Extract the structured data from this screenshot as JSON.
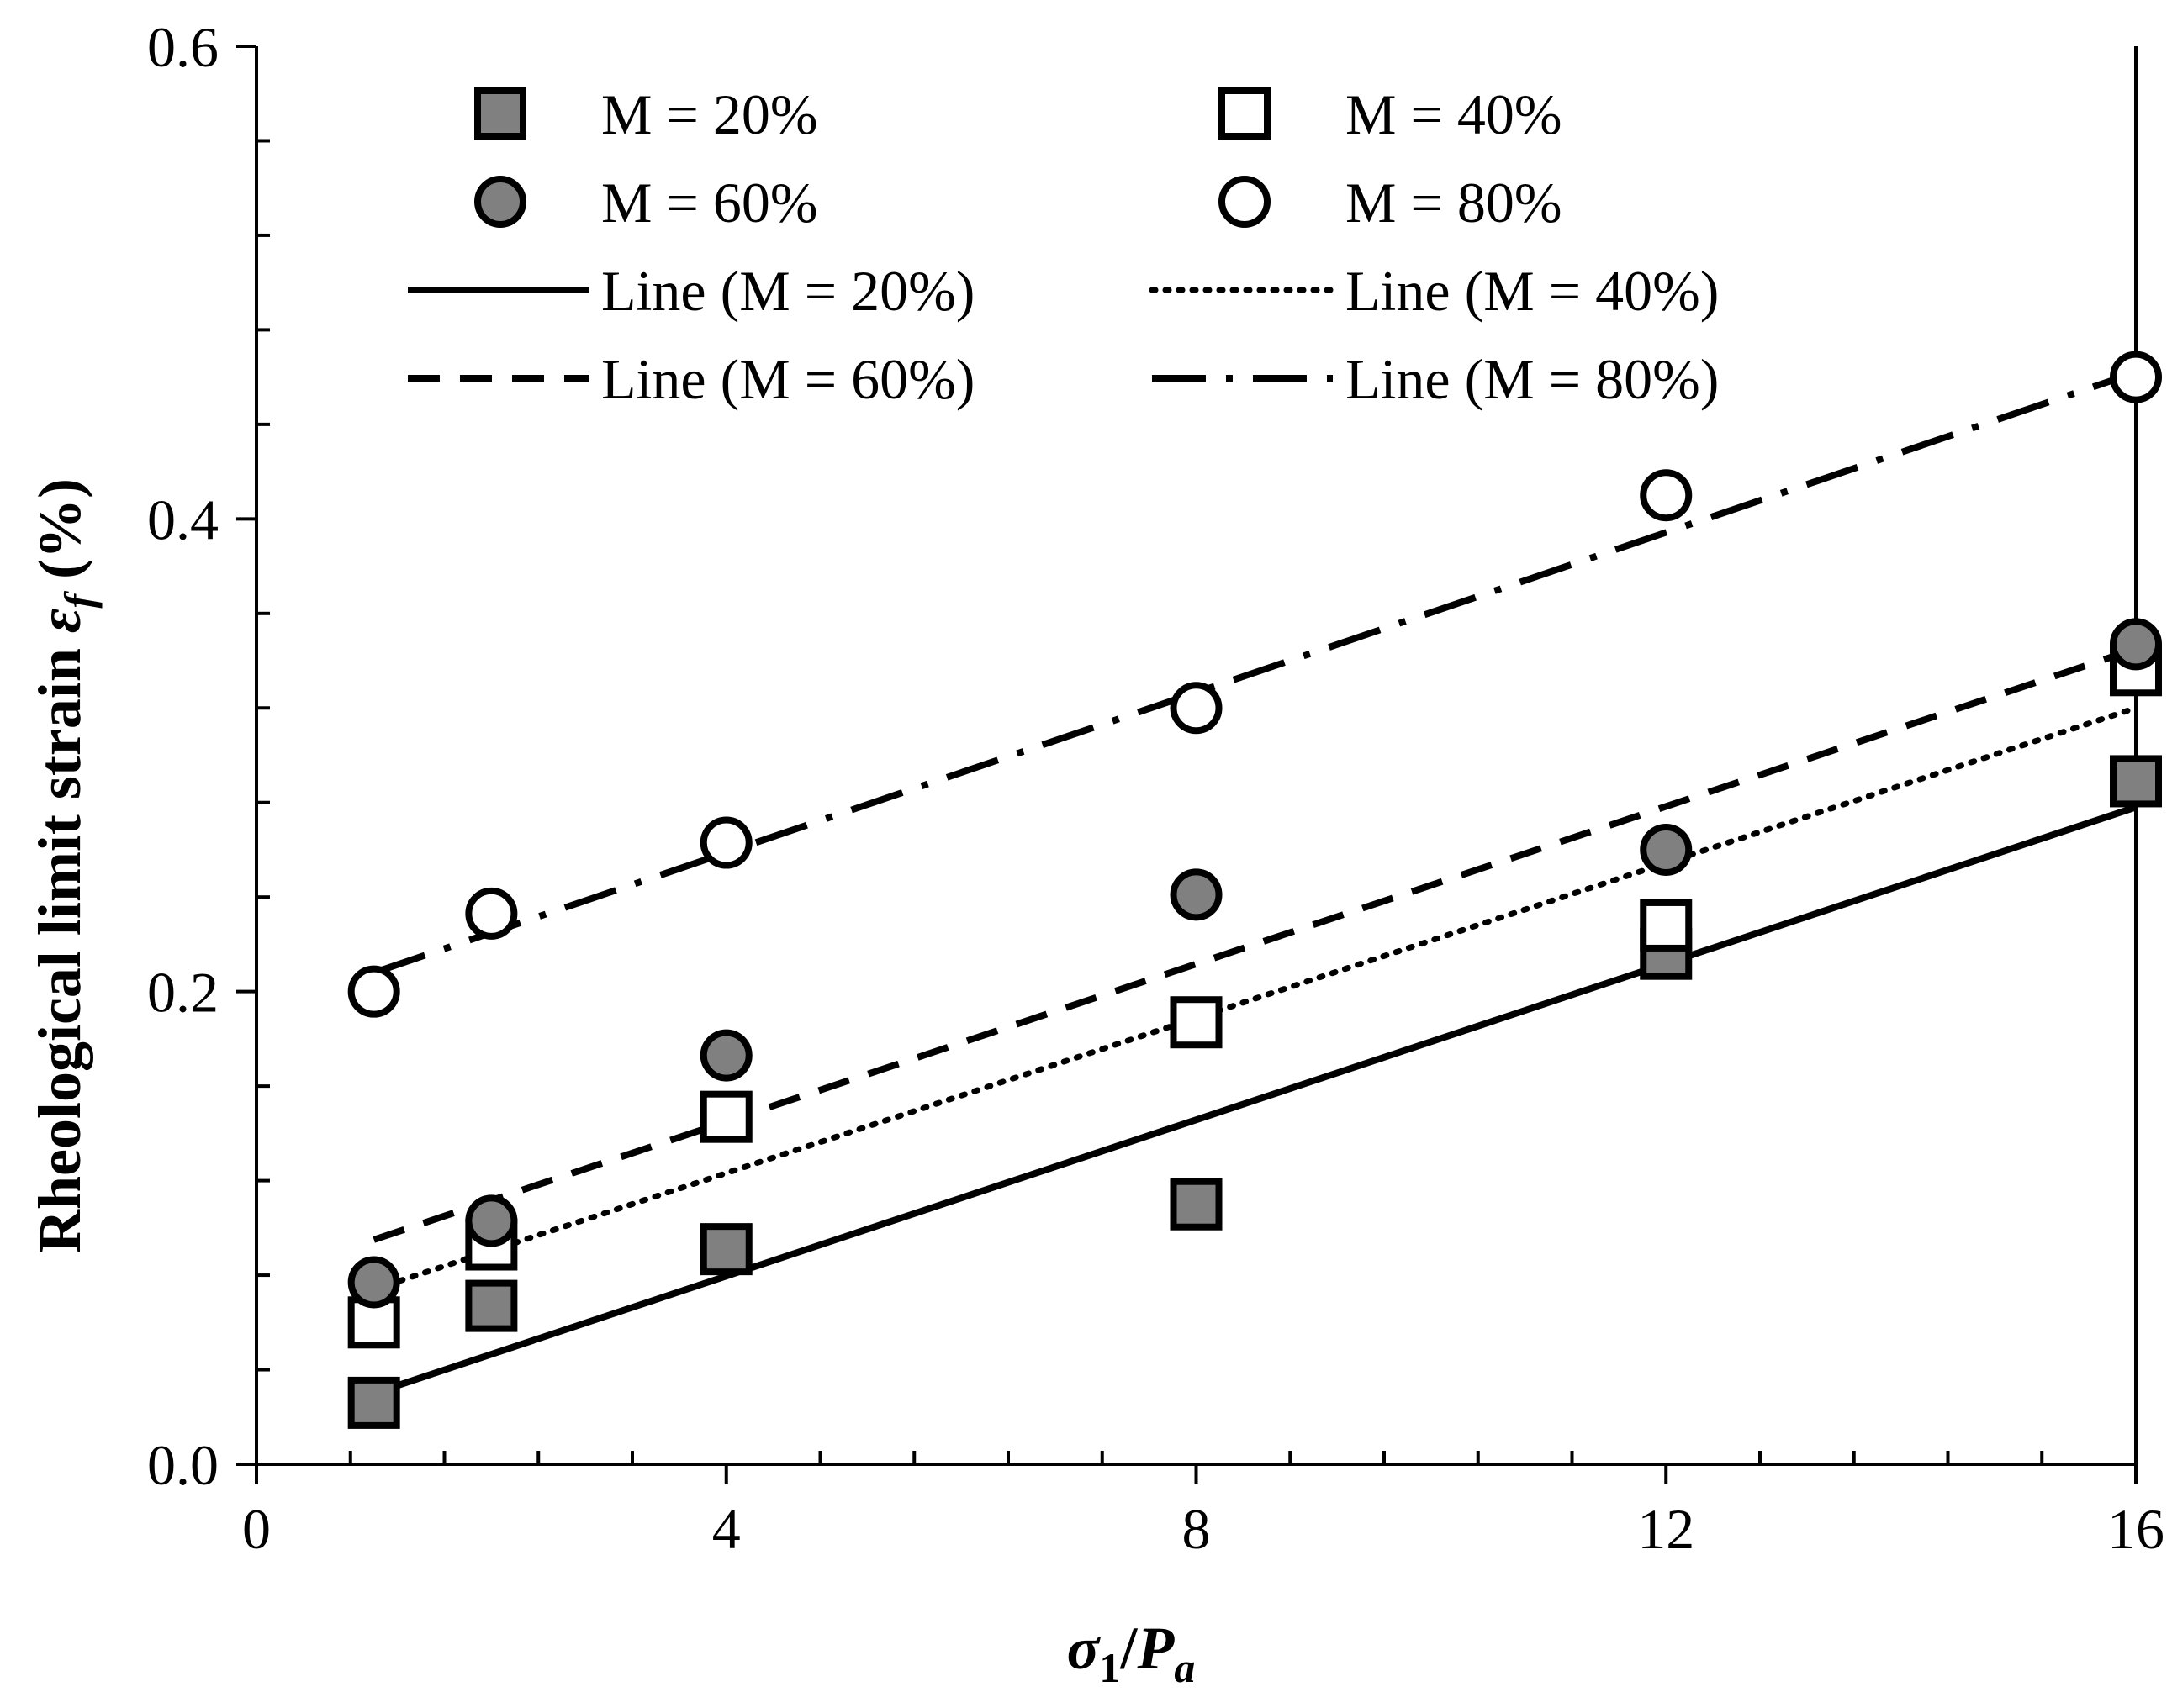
{
  "chart_data": {
    "type": "scatter",
    "title": "",
    "xlabel": {
      "symbol": "σ",
      "sub": "1",
      "sep": "/",
      "symbol2": "P",
      "sub2": "a"
    },
    "ylabel": {
      "text": "Rheological limit strain ",
      "symbol": "ε",
      "sub": "f",
      "unit": " (%)"
    },
    "xlim": [
      0,
      16
    ],
    "ylim": [
      0,
      0.6
    ],
    "xticks": [
      0,
      4,
      8,
      12,
      16
    ],
    "xtick_labels": [
      "0",
      "4",
      "8",
      "12",
      "16"
    ],
    "yticks": [
      0,
      0.2,
      0.4,
      0.6
    ],
    "ytick_labels": [
      "0.0",
      "0.2",
      "0.4",
      "0.6"
    ],
    "x_minor_step": 0.8,
    "y_minor_step": 0.04,
    "legend_position": "top",
    "series": [
      {
        "name": "M = 20%",
        "marker": "square",
        "fill": "#808080",
        "x": [
          1,
          2,
          4,
          8,
          12,
          16
        ],
        "y": [
          0.026,
          0.067,
          0.091,
          0.11,
          0.216,
          0.289
        ]
      },
      {
        "name": "M = 40%",
        "marker": "square",
        "fill": "#ffffff",
        "x": [
          1,
          2,
          4,
          8,
          12,
          16
        ],
        "y": [
          0.06,
          0.093,
          0.147,
          0.187,
          0.228,
          0.336
        ]
      },
      {
        "name": "M = 60%",
        "marker": "circle",
        "fill": "#808080",
        "x": [
          1,
          2,
          4,
          8,
          12,
          16
        ],
        "y": [
          0.077,
          0.103,
          0.173,
          0.241,
          0.26,
          0.347
        ]
      },
      {
        "name": "M = 80%",
        "marker": "circle",
        "fill": "#ffffff",
        "x": [
          1,
          2,
          4,
          8,
          12,
          16
        ],
        "y": [
          0.2,
          0.233,
          0.263,
          0.32,
          0.41,
          0.46
        ]
      }
    ],
    "fit_lines": [
      {
        "name": "Line (M = 20%)",
        "style": "solid",
        "x": [
          1,
          16
        ],
        "y": [
          0.03,
          0.278
        ]
      },
      {
        "name": "Line (M = 40%)",
        "style": "dotted",
        "x": [
          1,
          16
        ],
        "y": [
          0.074,
          0.32
        ]
      },
      {
        "name": "Line (M = 60%)",
        "style": "dashed",
        "x": [
          1,
          16
        ],
        "y": [
          0.095,
          0.345
        ]
      },
      {
        "name": "Line (M = 80%)",
        "style": "dashdot",
        "x": [
          1,
          16
        ],
        "y": [
          0.208,
          0.462
        ]
      }
    ]
  },
  "styles": {
    "marker_gray": "#808080",
    "line_color": "#000000",
    "background": "#ffffff"
  }
}
